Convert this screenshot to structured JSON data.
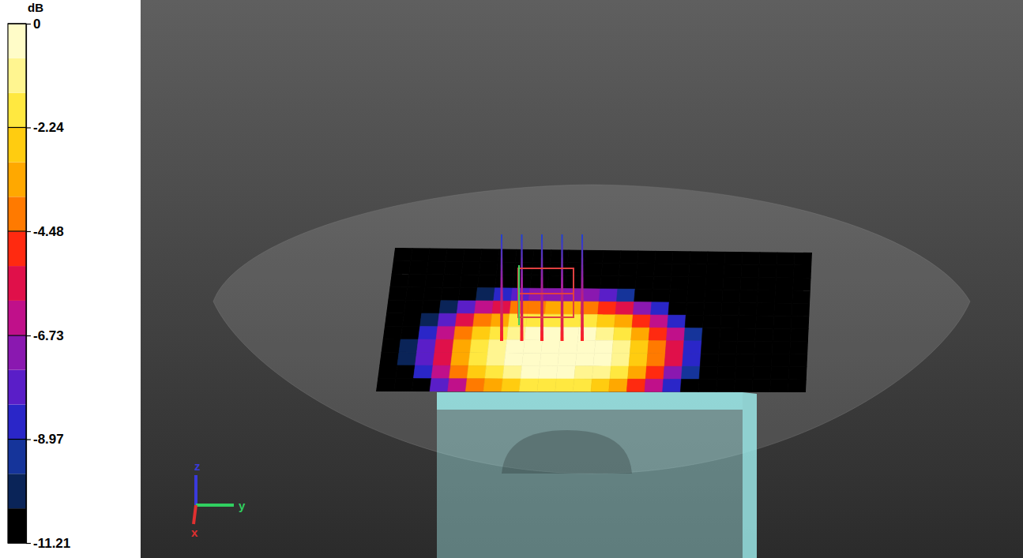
{
  "chart_data": {
    "type": "heatmap",
    "z": [
      [
        -11.21,
        -11.21,
        -11.21,
        -11.21,
        -11.21,
        -11.21,
        -11.21,
        -11.21,
        -11.21,
        -11.21,
        -11.21,
        -11.21,
        -11.21,
        -11.21,
        -11.21,
        -11.21,
        -11.21,
        -11.21,
        -11.21,
        -11.21,
        -11.21,
        -11.21,
        -11.21,
        -11.21
      ],
      [
        -11.21,
        -11.21,
        -11.21,
        -11.21,
        -11.21,
        -11.21,
        -11.21,
        -11.21,
        -11.21,
        -11.21,
        -11.21,
        -11.21,
        -11.21,
        -11.21,
        -11.21,
        -11.21,
        -11.21,
        -11.21,
        -11.21,
        -11.21,
        -11.21,
        -11.21,
        -11.21,
        -11.21
      ],
      [
        -11.21,
        -11.21,
        -11.21,
        -11.21,
        -11.21,
        -11.21,
        -11.21,
        -11.21,
        -11.21,
        -11.21,
        -11.21,
        -11.21,
        -11.21,
        -11.21,
        -11.21,
        -11.21,
        -11.21,
        -11.21,
        -11.21,
        -11.21,
        -11.21,
        -11.21,
        -11.21,
        -11.21
      ],
      [
        -11.21,
        -11.21,
        -11.21,
        -11.21,
        -11.21,
        -10.1,
        -8.74,
        -7.73,
        -7.1,
        -6.8,
        -6.86,
        -7.26,
        -8.03,
        -9.15,
        -10.66,
        -11.21,
        -11.21,
        -11.21,
        -11.21,
        -11.21,
        -11.21,
        -11.21,
        -11.21,
        -11.21
      ],
      [
        -11.21,
        -11.21,
        -11.21,
        -10.38,
        -8.22,
        -6.54,
        -5.3,
        -4.4,
        -3.84,
        -3.58,
        -3.63,
        -3.99,
        -4.65,
        -5.68,
        -7.04,
        -8.88,
        -11.07,
        -11.21,
        -11.21,
        -11.21,
        -11.21,
        -11.21,
        -11.21,
        -11.21
      ],
      [
        -11.21,
        -11.21,
        -10.1,
        -7.69,
        -5.68,
        -4.14,
        -3.01,
        -2.22,
        -1.73,
        -1.5,
        -1.54,
        -1.86,
        -2.44,
        -3.34,
        -4.6,
        -6.29,
        -8.36,
        -11.07,
        -11.21,
        -11.21,
        -11.21,
        -11.21,
        -11.21,
        -11.21
      ],
      [
        -11.21,
        -11.21,
        -8.35,
        -6.03,
        -4.13,
        -2.7,
        -1.67,
        -0.97,
        -0.57,
        -0.4,
        -0.43,
        -0.67,
        -1.17,
        -1.97,
        -3.12,
        -4.7,
        -6.65,
        -9.27,
        -11.21,
        -11.21,
        -11.21,
        -11.21,
        -11.21,
        -11.21
      ],
      [
        -11.21,
        -10.33,
        -7.51,
        -5.26,
        -3.41,
        -2.04,
        -1.09,
        -0.45,
        -0.2,
        -0.05,
        -0.06,
        -0.33,
        -0.64,
        -1.37,
        -2.45,
        -3.98,
        -5.87,
        -8.44,
        -11.21,
        -11.21,
        -11.21,
        -11.21,
        -11.21,
        -11.21
      ],
      [
        -11.21,
        -10.41,
        -7.59,
        -5.33,
        -3.48,
        -2.1,
        -1.14,
        -0.49,
        -0.24,
        -0.06,
        -0.07,
        -0.26,
        -0.69,
        -1.43,
        -2.51,
        -4.05,
        -5.95,
        -8.52,
        -11.21,
        -11.21,
        -11.21,
        -11.21,
        -11.21,
        -11.21
      ],
      [
        -11.21,
        -11.21,
        -8.57,
        -6.24,
        -4.32,
        -2.87,
        -1.83,
        -1.12,
        -0.72,
        -0.53,
        -0.56,
        -0.84,
        -1.32,
        -2.15,
        -3.3,
        -4.9,
        -6.86,
        -9.5,
        -11.21,
        -11.21,
        -11.21,
        -11.21,
        -11.21,
        -11.21
      ],
      [
        -11.21,
        -11.21,
        -10.52,
        -8.09,
        -6.04,
        -4.48,
        -3.33,
        -2.52,
        -2.02,
        -1.81,
        -1.85,
        -2.16,
        -2.75,
        -3.68,
        -4.95,
        -6.66,
        -8.75,
        -11.21,
        -11.21,
        -11.21,
        -11.21,
        -11.21,
        -11.21,
        -11.21
      ]
    ],
    "colorbar": {
      "label": "dB",
      "range": [
        -11.21,
        0
      ],
      "ticks": [
        0,
        -2.24,
        -4.48,
        -6.73,
        -8.97,
        -11.21
      ]
    },
    "annotations": [
      "z",
      "y",
      "x"
    ]
  }
}
